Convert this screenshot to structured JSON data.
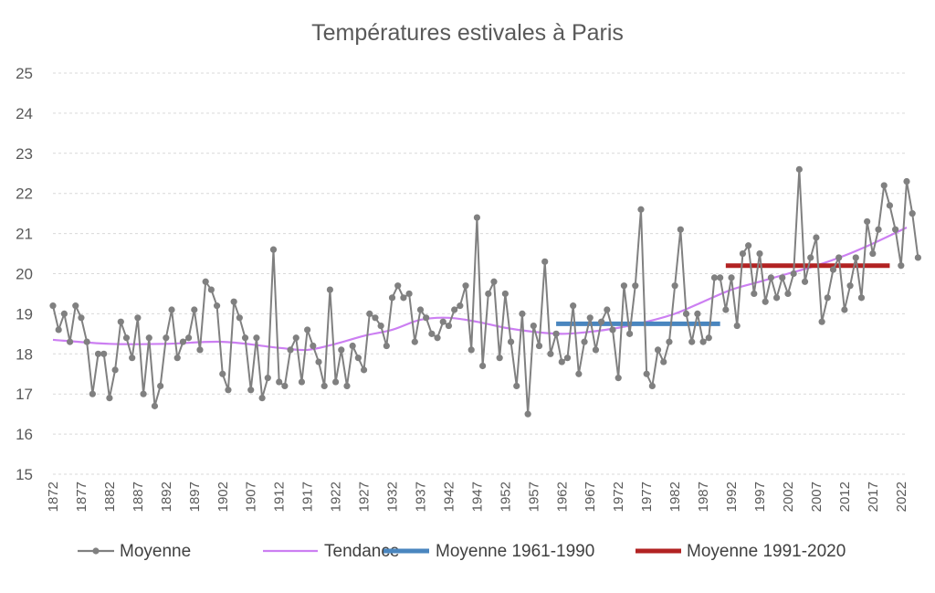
{
  "chart_data": {
    "type": "line",
    "title": "Températures estivales à Paris",
    "xlabel": "",
    "ylabel": "",
    "ylim": [
      15,
      25
    ],
    "yticks": [
      "15",
      "16",
      "17",
      "18",
      "19",
      "20",
      "21",
      "22",
      "23",
      "24",
      "25"
    ],
    "xlim": [
      1872,
      2023
    ],
    "xtick_labels": [
      "1872",
      "1877",
      "1882",
      "1887",
      "1892",
      "1897",
      "1902",
      "1907",
      "1912",
      "1917",
      "1922",
      "1927",
      "1932",
      "1937",
      "1942",
      "1947",
      "1952",
      "1957",
      "1962",
      "1967",
      "1972",
      "1977",
      "1982",
      "1987",
      "1992",
      "1997",
      "2002",
      "2007",
      "2012",
      "2017",
      "2022"
    ],
    "grid": "horizontal dashed",
    "legend_position": "bottom",
    "series": [
      {
        "name": "Moyenne",
        "kind": "line-markers",
        "color": "#808080",
        "start_year": 1872,
        "values": [
          19.2,
          18.6,
          19.0,
          18.3,
          19.2,
          18.9,
          18.3,
          17.0,
          18.0,
          18.0,
          16.9,
          17.6,
          18.8,
          18.4,
          17.9,
          18.9,
          17.0,
          18.4,
          16.7,
          17.2,
          18.4,
          19.1,
          17.9,
          18.3,
          18.4,
          19.1,
          18.1,
          19.8,
          19.6,
          19.2,
          17.5,
          17.1,
          19.3,
          18.9,
          18.4,
          17.1,
          18.4,
          16.9,
          17.4,
          20.6,
          17.3,
          17.2,
          18.1,
          18.4,
          17.3,
          18.6,
          18.2,
          17.8,
          17.2,
          19.6,
          17.3,
          18.1,
          17.2,
          18.2,
          17.9,
          17.6,
          19.0,
          18.9,
          18.7,
          18.2,
          19.4,
          19.7,
          19.4,
          19.5,
          18.3,
          19.1,
          18.9,
          18.5,
          18.4,
          18.8,
          18.7,
          19.1,
          19.2,
          19.7,
          18.1,
          21.4,
          17.7,
          19.5,
          19.8,
          17.9,
          19.5,
          18.3,
          17.2,
          19.0,
          16.5,
          18.7,
          18.2,
          20.3,
          18.0,
          18.5,
          17.8,
          17.9,
          19.2,
          17.5,
          18.3,
          18.9,
          18.1,
          18.8,
          19.1,
          18.6,
          17.4,
          19.7,
          18.5,
          19.7,
          21.6,
          17.5,
          17.2,
          18.1,
          17.8,
          18.3,
          19.7,
          21.1,
          19.0,
          18.3,
          19.0,
          18.3,
          18.4,
          19.9,
          19.9,
          19.1,
          19.9,
          18.7,
          20.5,
          20.7,
          19.5,
          20.5,
          19.3,
          19.9,
          19.4,
          19.9,
          19.5,
          20.0,
          22.6,
          19.8,
          20.4,
          20.9,
          18.8,
          19.4,
          20.1,
          20.4,
          19.1,
          19.7,
          20.4,
          19.4,
          21.3,
          20.5,
          21.1,
          22.2,
          21.7,
          21.1,
          20.2,
          22.3,
          21.5,
          20.4
        ]
      },
      {
        "name": "Tendance",
        "kind": "smooth-line",
        "color": "#cc7ff2",
        "points": [
          [
            1872,
            18.35
          ],
          [
            1882,
            18.25
          ],
          [
            1892,
            18.25
          ],
          [
            1902,
            18.3
          ],
          [
            1912,
            18.15
          ],
          [
            1917,
            18.1
          ],
          [
            1922,
            18.25
          ],
          [
            1927,
            18.45
          ],
          [
            1932,
            18.6
          ],
          [
            1937,
            18.85
          ],
          [
            1942,
            18.9
          ],
          [
            1947,
            18.8
          ],
          [
            1952,
            18.65
          ],
          [
            1957,
            18.55
          ],
          [
            1962,
            18.5
          ],
          [
            1967,
            18.55
          ],
          [
            1972,
            18.65
          ],
          [
            1977,
            18.8
          ],
          [
            1982,
            19.0
          ],
          [
            1987,
            19.3
          ],
          [
            1992,
            19.6
          ],
          [
            1997,
            19.8
          ],
          [
            2002,
            20.0
          ],
          [
            2007,
            20.2
          ],
          [
            2012,
            20.45
          ],
          [
            2017,
            20.75
          ],
          [
            2023,
            21.15
          ]
        ]
      },
      {
        "name": "Moyenne 1961-1990",
        "kind": "flat-line",
        "color": "#4a86bf",
        "x_range": [
          1961,
          1990
        ],
        "value": 18.75
      },
      {
        "name": "Moyenne 1991-2020",
        "kind": "flat-line",
        "color": "#b22222",
        "x_range": [
          1991,
          2020
        ],
        "value": 20.2
      }
    ]
  }
}
